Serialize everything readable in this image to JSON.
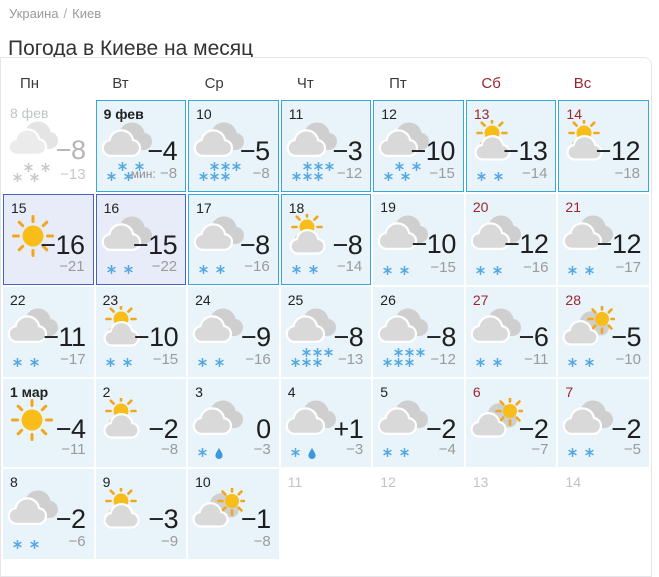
{
  "breadcrumb": {
    "country": "Украина",
    "separator": "/",
    "city": "Киев"
  },
  "title": "Погода в Киеве на месяц",
  "min_label": "мин:",
  "weekdays": [
    {
      "label": "Пн",
      "weekend": false
    },
    {
      "label": "Вт",
      "weekend": false
    },
    {
      "label": "Ср",
      "weekend": false
    },
    {
      "label": "Чт",
      "weekend": false
    },
    {
      "label": "Пт",
      "weekend": false
    },
    {
      "label": "Сб",
      "weekend": true
    },
    {
      "label": "Вс",
      "weekend": true
    }
  ],
  "colors": {
    "teal_border": "#38a8d8",
    "blue_border": "#4763c7",
    "cell_blue_bg": "#e8f3fa",
    "cell_lavender_bg": "#e8ebf8",
    "weekend_red": "#9d262e",
    "muted_gray": "#c0c4c8",
    "snowflake_blue": "#55a9e0",
    "raindrop_blue": "#3b9ade",
    "sun_core": "#f8bd18",
    "sun_rays": "#f1a61b",
    "cloud_back": "#cfcfcf",
    "cloud_front": "#d9d9d9"
  },
  "days": [
    {
      "date": "8 фев",
      "icon": "cloud",
      "precip": "snow4",
      "max": "−8",
      "min": "−13",
      "bg": "white",
      "border": "none",
      "date_style": "muted",
      "past": true
    },
    {
      "date": "9 фев",
      "icon": "cloud",
      "precip": "snow4",
      "max": "−4",
      "min": "−8",
      "bg": "blue",
      "border": "teal",
      "date_style": "bold",
      "min_label": true
    },
    {
      "date": "10",
      "icon": "cloud",
      "precip": "snow6",
      "max": "−5",
      "min": "−8",
      "bg": "blue",
      "border": "teal"
    },
    {
      "date": "11",
      "icon": "cloud",
      "precip": "snow6",
      "max": "−3",
      "min": "−12",
      "bg": "blue",
      "border": "teal"
    },
    {
      "date": "12",
      "icon": "cloud",
      "precip": "snow4",
      "max": "−10",
      "min": "−15",
      "bg": "blue",
      "border": "teal"
    },
    {
      "date": "13",
      "icon": "sun-cloud",
      "precip": "snow2",
      "max": "−13",
      "min": "−14",
      "bg": "blue",
      "border": "teal",
      "date_style": "weekend"
    },
    {
      "date": "14",
      "icon": "sun-cloud",
      "precip": "none",
      "max": "−12",
      "min": "−18",
      "bg": "blue",
      "border": "teal",
      "date_style": "weekend"
    },
    {
      "date": "15",
      "icon": "sun",
      "precip": "none",
      "max": "−16",
      "min": "−21",
      "bg": "lavender",
      "border": "blue"
    },
    {
      "date": "16",
      "icon": "cloud",
      "precip": "snow2",
      "max": "−15",
      "min": "−22",
      "bg": "lavender",
      "border": "blue"
    },
    {
      "date": "17",
      "icon": "cloud",
      "precip": "snow2",
      "max": "−8",
      "min": "−16",
      "bg": "blue",
      "border": "teal"
    },
    {
      "date": "18",
      "icon": "sun-cloud",
      "precip": "snow2",
      "max": "−8",
      "min": "−14",
      "bg": "blue",
      "border": "teal"
    },
    {
      "date": "19",
      "icon": "cloud",
      "precip": "snow2",
      "max": "−10",
      "min": "−15",
      "bg": "blue"
    },
    {
      "date": "20",
      "icon": "cloud",
      "precip": "snow2",
      "max": "−12",
      "min": "−16",
      "bg": "blue",
      "date_style": "weekend"
    },
    {
      "date": "21",
      "icon": "cloud",
      "precip": "snow2",
      "max": "−12",
      "min": "−17",
      "bg": "blue",
      "date_style": "weekend"
    },
    {
      "date": "22",
      "icon": "cloud",
      "precip": "snow2",
      "max": "−11",
      "min": "−17",
      "bg": "blue"
    },
    {
      "date": "23",
      "icon": "sun-cloud",
      "precip": "snow2",
      "max": "−10",
      "min": "−15",
      "bg": "blue"
    },
    {
      "date": "24",
      "icon": "cloud",
      "precip": "snow2",
      "max": "−9",
      "min": "−16",
      "bg": "blue"
    },
    {
      "date": "25",
      "icon": "cloud",
      "precip": "snow6",
      "max": "−8",
      "min": "−13",
      "bg": "blue"
    },
    {
      "date": "26",
      "icon": "cloud",
      "precip": "snow6",
      "max": "−8",
      "min": "−12",
      "bg": "blue"
    },
    {
      "date": "27",
      "icon": "cloud",
      "precip": "snow2",
      "max": "−6",
      "min": "−11",
      "bg": "blue",
      "date_style": "weekend"
    },
    {
      "date": "28",
      "icon": "cloud-sun",
      "precip": "snow2",
      "max": "−5",
      "min": "−10",
      "bg": "blue",
      "date_style": "weekend"
    },
    {
      "date": "1 мар",
      "icon": "sun",
      "precip": "none",
      "max": "−4",
      "min": "−11",
      "bg": "blue",
      "date_style": "bold"
    },
    {
      "date": "2",
      "icon": "sun-cloud",
      "precip": "none",
      "max": "−2",
      "min": "−8",
      "bg": "blue"
    },
    {
      "date": "3",
      "icon": "cloud",
      "precip": "sleet",
      "max": "0",
      "min": "−3",
      "bg": "blue"
    },
    {
      "date": "4",
      "icon": "cloud",
      "precip": "sleet",
      "max": "+1",
      "min": "−3",
      "bg": "blue"
    },
    {
      "date": "5",
      "icon": "cloud",
      "precip": "snow2",
      "max": "−2",
      "min": "−4",
      "bg": "blue"
    },
    {
      "date": "6",
      "icon": "cloud-sun",
      "precip": "none",
      "max": "−2",
      "min": "−7",
      "bg": "blue",
      "date_style": "weekend"
    },
    {
      "date": "7",
      "icon": "cloud",
      "precip": "snow2",
      "max": "−2",
      "min": "−5",
      "bg": "blue",
      "date_style": "weekend"
    },
    {
      "date": "8",
      "icon": "cloud",
      "precip": "snow2",
      "max": "−2",
      "min": "−6",
      "bg": "blue"
    },
    {
      "date": "9",
      "icon": "sun-cloud",
      "precip": "none",
      "max": "−3",
      "min": "−9",
      "bg": "blue"
    },
    {
      "date": "10",
      "icon": "cloud-sun",
      "precip": "none",
      "max": "−1",
      "min": "−8",
      "bg": "blue"
    },
    {
      "date": "11",
      "empty": true,
      "date_style": "muted"
    },
    {
      "date": "12",
      "empty": true,
      "date_style": "muted"
    },
    {
      "date": "13",
      "empty": true,
      "date_style": "muted"
    },
    {
      "date": "14",
      "empty": true,
      "date_style": "muted"
    }
  ]
}
